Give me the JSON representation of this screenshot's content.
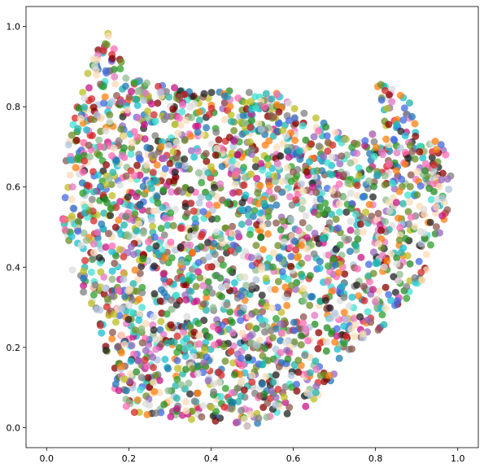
{
  "chart_data": {
    "type": "scatter",
    "title": "",
    "xlabel": "",
    "ylabel": "",
    "xlim": [
      -0.05,
      1.05
    ],
    "ylim": [
      -0.05,
      1.05
    ],
    "x_ticks": [
      0.0,
      0.2,
      0.4,
      0.6,
      0.8,
      1.0
    ],
    "x_tick_labels": [
      "0.0",
      "0.2",
      "0.4",
      "0.6",
      "0.8",
      "1.0"
    ],
    "y_ticks": [
      0.0,
      0.2,
      0.4,
      0.6,
      0.8,
      1.0
    ],
    "y_tick_labels": [
      "0.0",
      "0.2",
      "0.4",
      "0.6",
      "0.8",
      "1.0"
    ],
    "grid": false,
    "legend": "none",
    "point_alpha": 0.75,
    "palette": [
      "#d62728",
      "#2ca02c",
      "#1f77b4",
      "#ff7f0e",
      "#9467bd",
      "#17becf",
      "#e377c2",
      "#7f7f7f",
      "#bcbd22",
      "#8c564b",
      "#222222",
      "#f5deb3",
      "#b0c4de",
      "#20b2aa",
      "#ff69b4",
      "#8fbc8f",
      "#dcdcdc",
      "#4169e1",
      "#228b22",
      "#c71585",
      "#ffdab9",
      "#40e0d0",
      "#8b0000",
      "#6b8e23"
    ],
    "boundary": [
      [
        0.03,
        0.55
      ],
      [
        0.06,
        0.75
      ],
      [
        0.1,
        0.9
      ],
      [
        0.15,
        0.99
      ],
      [
        0.2,
        0.87
      ],
      [
        0.3,
        0.85
      ],
      [
        0.38,
        0.84
      ],
      [
        0.55,
        0.84
      ],
      [
        0.65,
        0.78
      ],
      [
        0.75,
        0.71
      ],
      [
        0.82,
        0.76
      ],
      [
        0.8,
        0.87
      ],
      [
        0.88,
        0.82
      ],
      [
        0.92,
        0.73
      ],
      [
        0.97,
        0.7
      ],
      [
        0.99,
        0.6
      ],
      [
        0.97,
        0.52
      ],
      [
        0.93,
        0.38
      ],
      [
        0.88,
        0.32
      ],
      [
        0.82,
        0.25
      ],
      [
        0.72,
        0.18
      ],
      [
        0.67,
        0.07
      ],
      [
        0.58,
        0.03
      ],
      [
        0.48,
        0.0
      ],
      [
        0.35,
        0.02
      ],
      [
        0.25,
        0.02
      ],
      [
        0.18,
        0.05
      ],
      [
        0.15,
        0.15
      ],
      [
        0.13,
        0.25
      ],
      [
        0.08,
        0.35
      ],
      [
        0.05,
        0.42
      ]
    ],
    "series": [
      {
        "count": 2600,
        "marker_radius": 4.5,
        "seed": 17
      }
    ]
  }
}
